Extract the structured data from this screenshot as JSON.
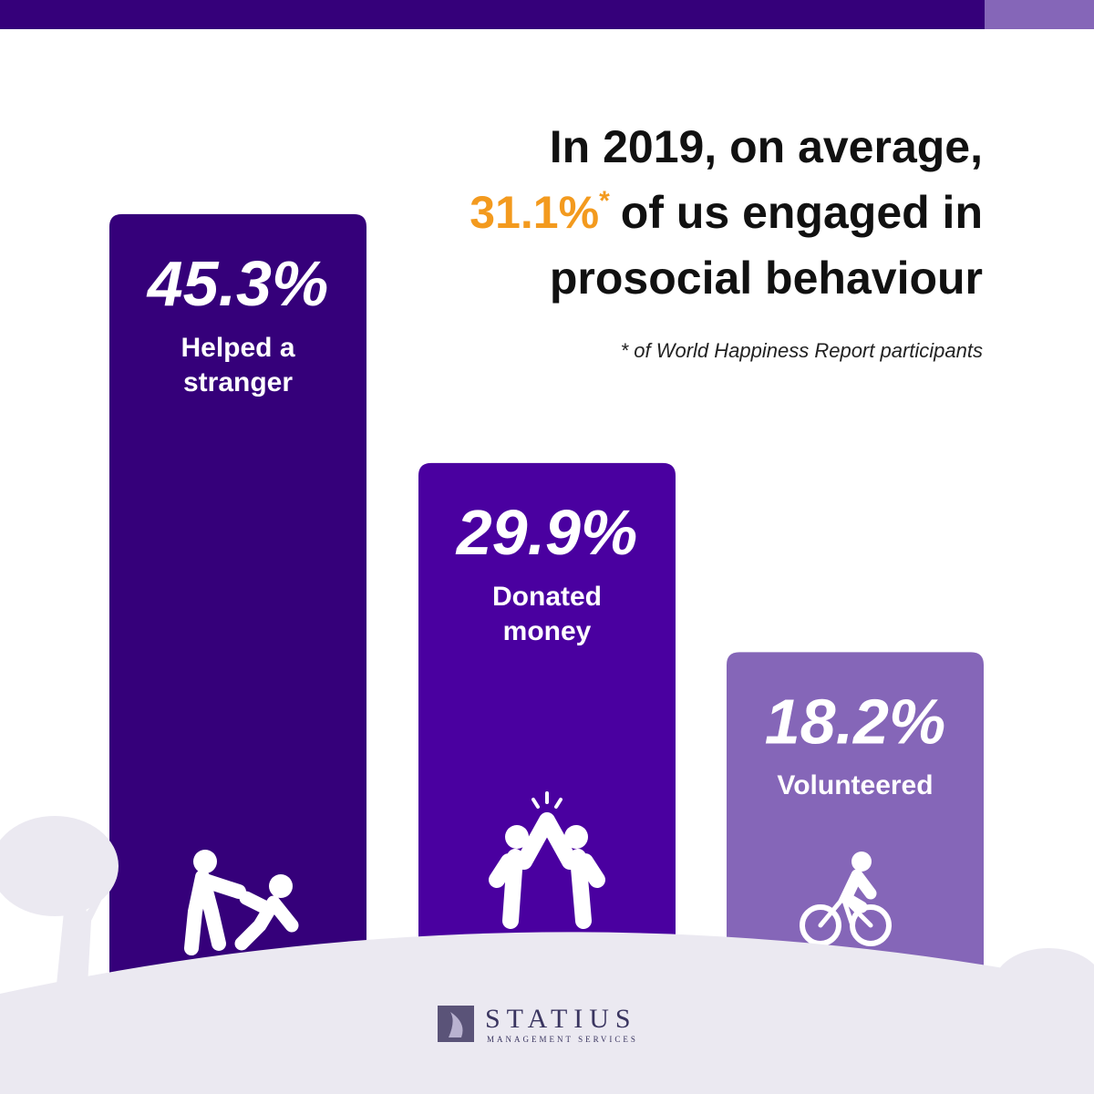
{
  "chart_data": {
    "type": "bar",
    "title": "In 2019, on average,",
    "highlight": "31.1%",
    "highlight_mark": "*",
    "title_rest": "of us engaged in",
    "title_end": "prosocial behaviour",
    "highlight_color": "#f39a1e",
    "footnote": "* of World Happiness Report participants",
    "categories": [
      "Helped a stranger",
      "Donated money",
      "Volunteered"
    ],
    "values": [
      45.3,
      29.9,
      18.2
    ],
    "value_labels": [
      "45.3%",
      "29.9%",
      "18.2%"
    ],
    "colors": [
      "#35007a",
      "#4a00a0",
      "#8566b8"
    ]
  },
  "logo": {
    "name": "STATIUS",
    "subtitle": "MANAGEMENT SERVICES"
  }
}
